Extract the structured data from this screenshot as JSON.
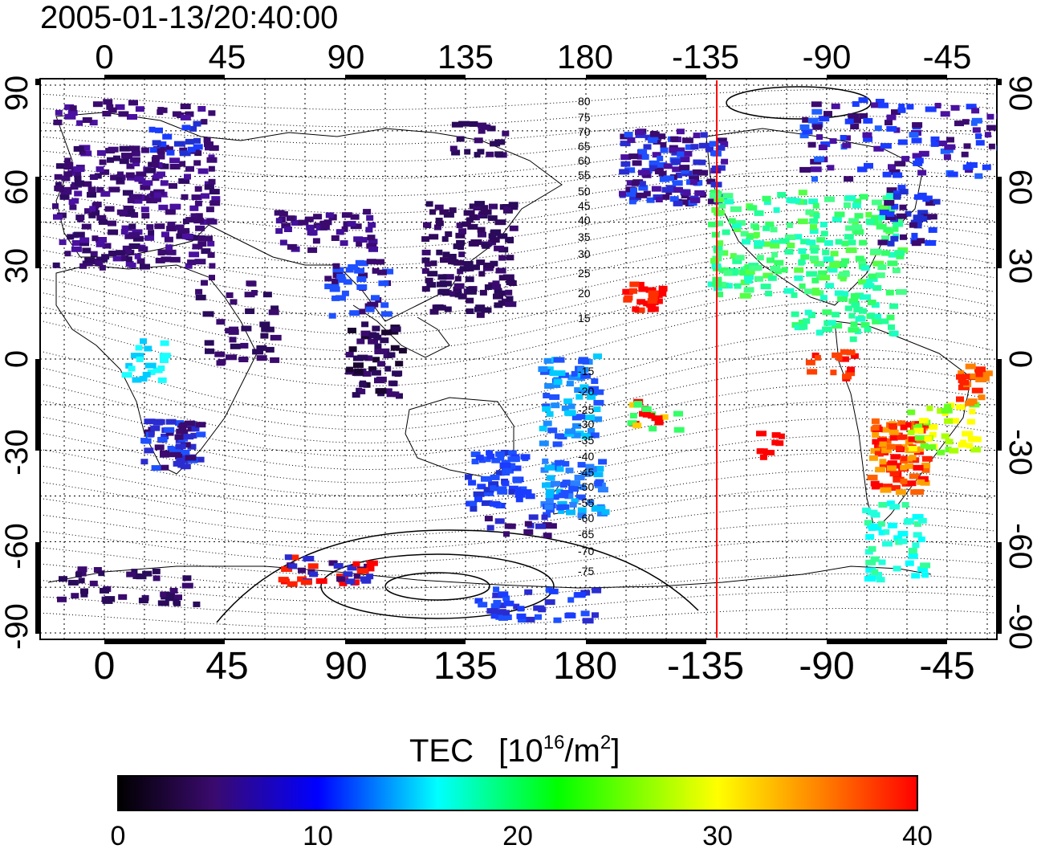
{
  "title": "2005-01-13/20:40:00",
  "map": {
    "lon_ticks": [
      "0",
      "45",
      "90",
      "135",
      "180",
      "-135",
      "-90",
      "-45"
    ],
    "lat_ticks": [
      "90",
      "60",
      "30",
      "0",
      "-30",
      "-60",
      "-90"
    ],
    "mlat_labels": [
      "80",
      "75",
      "70",
      "65",
      "60",
      "55",
      "50",
      "45",
      "40",
      "35",
      "30",
      "25",
      "20",
      "15",
      "-15",
      "-20",
      "-25",
      "-30",
      "-35",
      "-40",
      "-45",
      "-50",
      "-55",
      "-60",
      "-65",
      "-70",
      "-75"
    ],
    "terminator_color": "#ff0000"
  },
  "colorbar": {
    "label": "TEC",
    "unit_base": "[10",
    "unit_exp1": "16",
    "unit_mid": "/m",
    "unit_exp2": "2",
    "unit_end": "]",
    "ticks": [
      "0",
      "10",
      "20",
      "30",
      "40"
    ],
    "colors": [
      "#000000",
      "#3a0a6e",
      "#0000ff",
      "#00ffff",
      "#00ff00",
      "#ffff00",
      "#ff0000"
    ]
  }
}
